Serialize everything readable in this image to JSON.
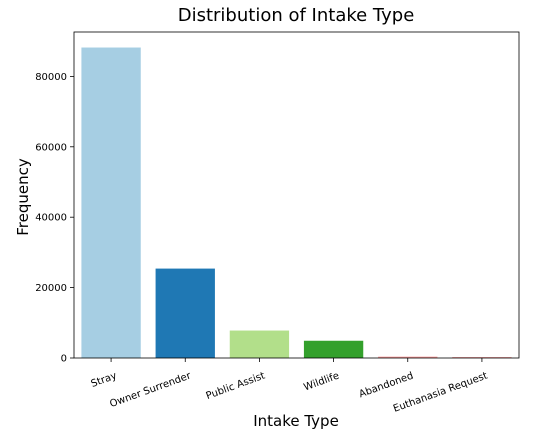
{
  "chart_data": {
    "type": "bar",
    "title": "Distribution of Intake Type",
    "xlabel": "Intake Type",
    "ylabel": "Frequency",
    "categories": [
      "Stray",
      "Owner Surrender",
      "Public Assist",
      "Wildlife",
      "Abandoned",
      "Euthanasia Request"
    ],
    "values": [
      88200,
      25400,
      7800,
      4900,
      380,
      180
    ],
    "colors": [
      "#a6cee3",
      "#1f78b4",
      "#b2df8a",
      "#33a02c",
      "#fb9a99",
      "#e31a1c"
    ],
    "yticks": [
      0,
      20000,
      40000,
      60000,
      80000
    ],
    "ytick_labels": [
      "0",
      "20000",
      "40000",
      "60000",
      "80000"
    ],
    "ylim": [
      0,
      92610
    ],
    "grid": false,
    "legend": "none"
  }
}
